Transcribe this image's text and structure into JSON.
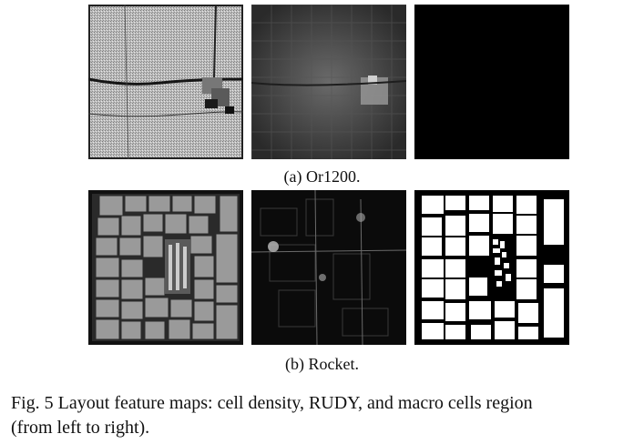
{
  "figure": {
    "row_a": {
      "caption": "(a) Or1200.",
      "panels": [
        "cell density",
        "RUDY",
        "macro cells region"
      ]
    },
    "row_b": {
      "caption": "(b) Rocket.",
      "panels": [
        "cell density",
        "RUDY",
        "macro cells region"
      ]
    },
    "caption_line1": "Fig. 5 Layout feature maps: cell density, RUDY, and macro cells region",
    "caption_line2": "(from left to right)."
  }
}
